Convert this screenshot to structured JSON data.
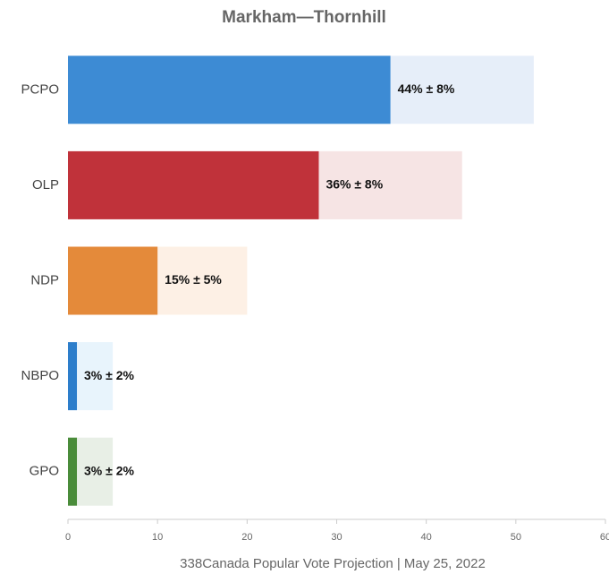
{
  "chart_data": {
    "type": "bar_error",
    "title": "Markham—Thornhill",
    "caption": "338Canada Popular Vote Projection | May 25, 2022",
    "categories": [
      "PCPO",
      "OLP",
      "NDP",
      "NBPO",
      "GPO"
    ],
    "values": [
      44,
      36,
      15,
      3,
      3
    ],
    "errors": [
      8,
      8,
      5,
      2,
      2
    ],
    "value_labels": [
      "44% ± 8%",
      "36% ± 8%",
      "15% ± 5%",
      "3% ± 2%",
      "3% ± 2%"
    ],
    "colors": [
      "#3d8bd4",
      "#c0323a",
      "#e48a3a",
      "#2d7ecb",
      "#4a8c3a"
    ],
    "error_colors": [
      "#e6eef9",
      "#f6e4e4",
      "#fdf0e5",
      "#e8f4fc",
      "#e8efe6"
    ],
    "xlim": [
      0,
      60
    ],
    "xticks": [
      0,
      10,
      20,
      30,
      40,
      50,
      60
    ]
  }
}
